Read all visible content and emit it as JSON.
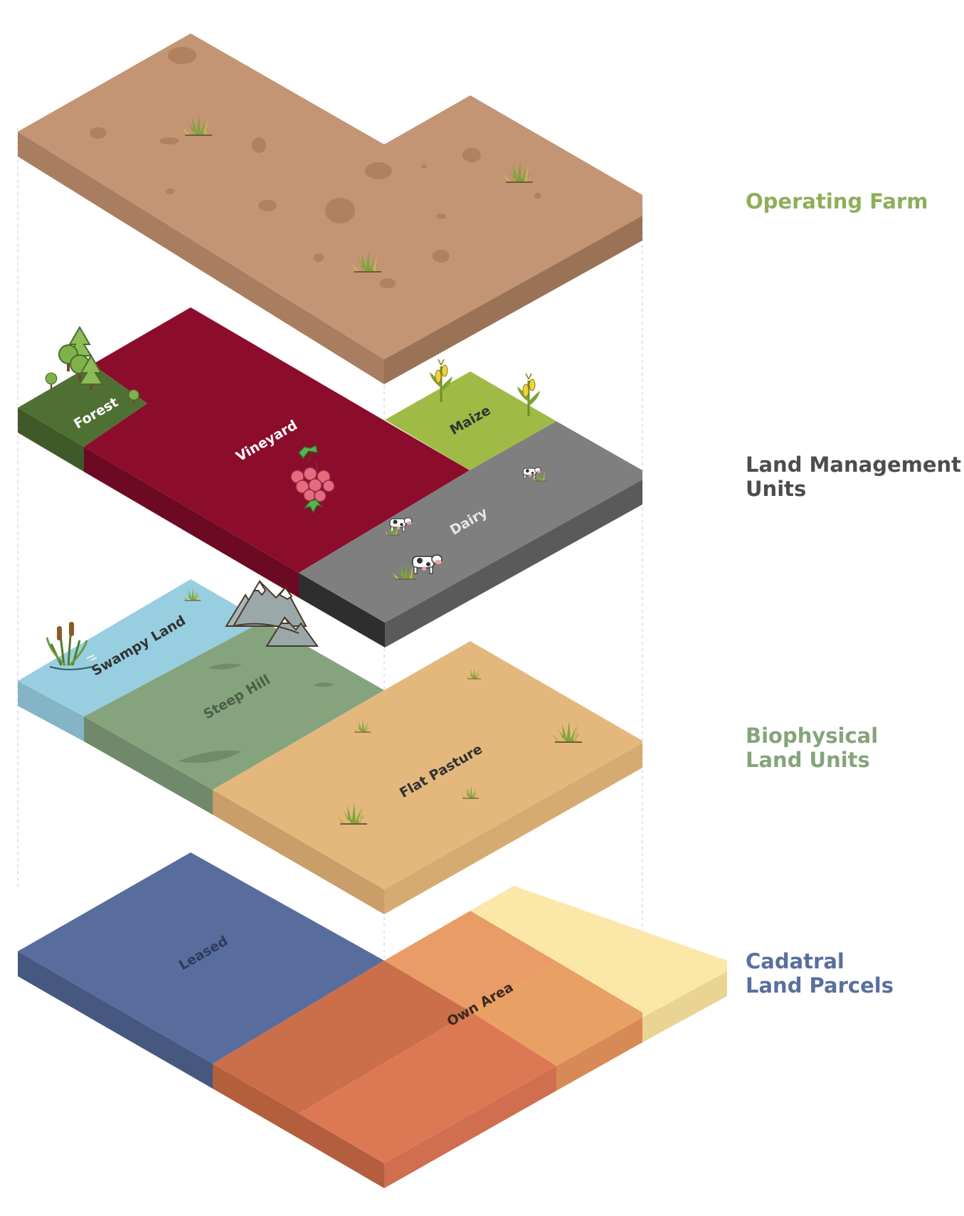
{
  "layers": {
    "operating_farm": {
      "title_lines": [
        "Operating Farm"
      ],
      "color": "#8fae5a"
    },
    "land_management_units": {
      "title_lines": [
        "Land Management",
        "Units"
      ],
      "color": "#4d4d4d",
      "units": {
        "forest": "Forest",
        "vineyard": "Vineyard",
        "maize": "Maize",
        "dairy": "Dairy"
      }
    },
    "biophysical_land_units": {
      "title_lines": [
        "Biophysical",
        "Land Units"
      ],
      "color": "#86a47c",
      "units": {
        "swampy": "Swampy Land",
        "steep": "Steep Hill",
        "flat": "Flat Pasture"
      }
    },
    "cadastral_land_parcels": {
      "title_lines": [
        "Cadatral",
        "Land Parcels"
      ],
      "color": "#5a6f9e",
      "units": {
        "leased": "Leased",
        "own": "Own Area"
      }
    }
  },
  "palette": {
    "farm_top": "#c39574",
    "farm_side": "#a97e60",
    "forest_top": "#4f7033",
    "forest_side": "#3f5a28",
    "vineyard_top": "#8c0c2c",
    "vineyard_side": "#6c0a23",
    "maize_top": "#9fbb45",
    "dairy_top": "#7f7f7f",
    "dairy_side": "#3c3c3c",
    "swampy_top": "#97cfe0",
    "swampy_side": "#83b5c7",
    "steep_top": "#85a47d",
    "steep_side": "#70896a",
    "flat_top": "#e4b87d",
    "flat_side": "#c99e68",
    "leased_top": "#586d9d",
    "leased_side": "#465880",
    "own_top": "#e18a58",
    "own_side": "#c4714a",
    "extra_top": "#fbe7a8",
    "extra_side": "#ead494"
  },
  "icons": [
    "grass-icon",
    "tree-icon",
    "grape-icon",
    "corn-icon",
    "cow-icon",
    "reed-icon",
    "mountain-icon"
  ]
}
